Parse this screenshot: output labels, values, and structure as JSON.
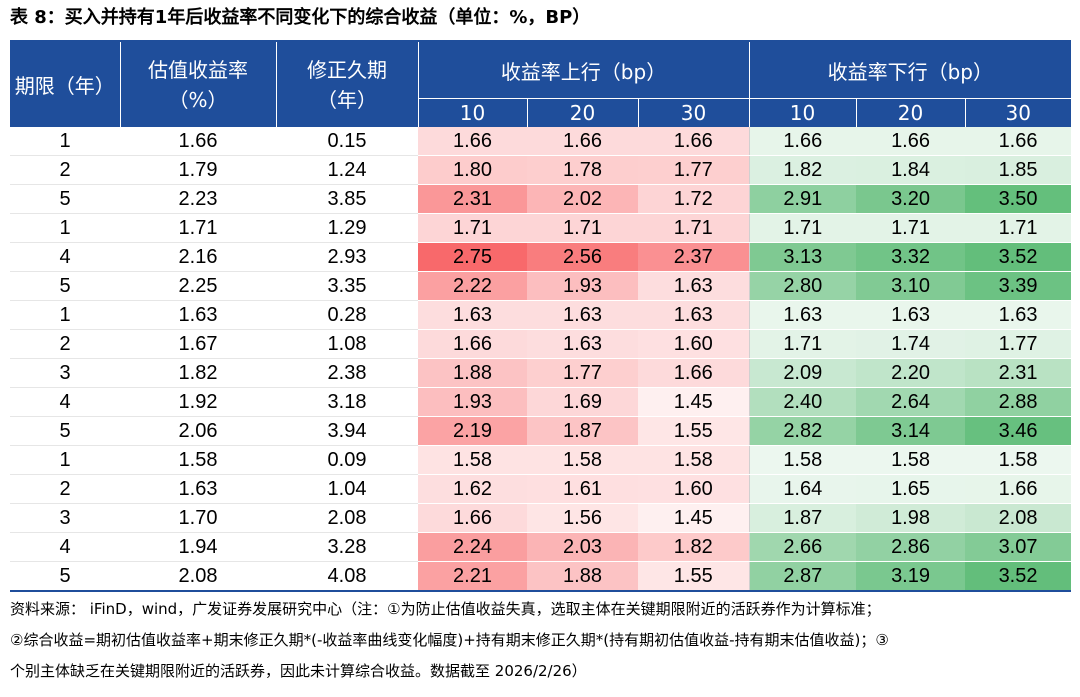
{
  "title": "表 8：买入并持有1年后收益率不同变化下的综合收益（单位：%，BP）",
  "headers": {
    "term": "期限（年）",
    "valuation_yield_line1": "估值收益率",
    "valuation_yield_line2": "（%）",
    "modified_duration_line1": "修正久期",
    "modified_duration_line2": "（年）",
    "yield_up": "收益率上行（bp）",
    "yield_down": "收益率下行（bp）",
    "up_sub": [
      "10",
      "20",
      "30"
    ],
    "down_sub": [
      "10",
      "20",
      "30"
    ]
  },
  "rows": [
    {
      "term": "1",
      "yield": "1.66",
      "duration": "0.15",
      "up": [
        "1.66",
        "1.66",
        "1.66"
      ],
      "down": [
        "1.66",
        "1.66",
        "1.66"
      ]
    },
    {
      "term": "2",
      "yield": "1.79",
      "duration": "1.24",
      "up": [
        "1.80",
        "1.78",
        "1.77"
      ],
      "down": [
        "1.82",
        "1.84",
        "1.85"
      ]
    },
    {
      "term": "5",
      "yield": "2.23",
      "duration": "3.85",
      "up": [
        "2.31",
        "2.02",
        "1.72"
      ],
      "down": [
        "2.91",
        "3.20",
        "3.50"
      ]
    },
    {
      "term": "1",
      "yield": "1.71",
      "duration": "1.29",
      "up": [
        "1.71",
        "1.71",
        "1.71"
      ],
      "down": [
        "1.71",
        "1.71",
        "1.71"
      ]
    },
    {
      "term": "4",
      "yield": "2.16",
      "duration": "2.93",
      "up": [
        "2.75",
        "2.56",
        "2.37"
      ],
      "down": [
        "3.13",
        "3.32",
        "3.52"
      ]
    },
    {
      "term": "5",
      "yield": "2.25",
      "duration": "3.35",
      "up": [
        "2.22",
        "1.93",
        "1.63"
      ],
      "down": [
        "2.80",
        "3.10",
        "3.39"
      ]
    },
    {
      "term": "1",
      "yield": "1.63",
      "duration": "0.28",
      "up": [
        "1.63",
        "1.63",
        "1.63"
      ],
      "down": [
        "1.63",
        "1.63",
        "1.63"
      ]
    },
    {
      "term": "2",
      "yield": "1.67",
      "duration": "1.08",
      "up": [
        "1.66",
        "1.63",
        "1.60"
      ],
      "down": [
        "1.71",
        "1.74",
        "1.77"
      ]
    },
    {
      "term": "3",
      "yield": "1.82",
      "duration": "2.38",
      "up": [
        "1.88",
        "1.77",
        "1.66"
      ],
      "down": [
        "2.09",
        "2.20",
        "2.31"
      ]
    },
    {
      "term": "4",
      "yield": "1.92",
      "duration": "3.18",
      "up": [
        "1.93",
        "1.69",
        "1.45"
      ],
      "down": [
        "2.40",
        "2.64",
        "2.88"
      ]
    },
    {
      "term": "5",
      "yield": "2.06",
      "duration": "3.94",
      "up": [
        "2.19",
        "1.87",
        "1.55"
      ],
      "down": [
        "2.82",
        "3.14",
        "3.46"
      ]
    },
    {
      "term": "1",
      "yield": "1.58",
      "duration": "0.09",
      "up": [
        "1.58",
        "1.58",
        "1.58"
      ],
      "down": [
        "1.58",
        "1.58",
        "1.58"
      ]
    },
    {
      "term": "2",
      "yield": "1.63",
      "duration": "1.04",
      "up": [
        "1.62",
        "1.61",
        "1.60"
      ],
      "down": [
        "1.64",
        "1.65",
        "1.66"
      ]
    },
    {
      "term": "3",
      "yield": "1.70",
      "duration": "2.08",
      "up": [
        "1.66",
        "1.56",
        "1.45"
      ],
      "down": [
        "1.87",
        "1.98",
        "2.08"
      ]
    },
    {
      "term": "4",
      "yield": "1.94",
      "duration": "3.28",
      "up": [
        "2.24",
        "2.03",
        "1.82"
      ],
      "down": [
        "2.66",
        "2.86",
        "3.07"
      ]
    },
    {
      "term": "5",
      "yield": "2.08",
      "duration": "4.08",
      "up": [
        "2.21",
        "1.88",
        "1.55"
      ],
      "down": [
        "2.87",
        "3.19",
        "3.52"
      ]
    }
  ],
  "colors": {
    "header_bg": "#1f4e9b",
    "heat_low": "#ffffff",
    "heat_up_high": "#f8696b",
    "heat_down_high": "#63be7b"
  },
  "source": {
    "line1": "资料来源： iFinD，wind，广发证券发展研究中心（注：①为防止估值收益失真，选取主体在关键期限附近的活跃券作为计算标准；",
    "line2": "②综合收益=期初估值收益率+期末修正久期*(-收益率曲线变化幅度)+持有期末修正久期*(持有期初估值收益-持有期末估值收益)；③",
    "line3": "个别主体缺乏在关键期限附近的活跃券，因此未计算综合收益。数据截至 2026/2/26）"
  }
}
